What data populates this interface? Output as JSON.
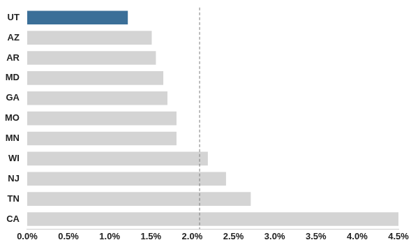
{
  "chart_data": {
    "type": "bar",
    "orientation": "horizontal",
    "categories": [
      "UT",
      "AZ",
      "AR",
      "MD",
      "GA",
      "MO",
      "MN",
      "WI",
      "NJ",
      "TN",
      "CA"
    ],
    "values": [
      1.22,
      1.51,
      1.56,
      1.65,
      1.7,
      1.81,
      1.81,
      2.19,
      2.41,
      2.71,
      4.5
    ],
    "colors": [
      "#3b6f98",
      "#d4d4d4",
      "#d4d4d4",
      "#d4d4d4",
      "#d4d4d4",
      "#d4d4d4",
      "#d4d4d4",
      "#d4d4d4",
      "#d4d4d4",
      "#d4d4d4",
      "#d4d4d4"
    ],
    "xlim": [
      0,
      4.5
    ],
    "xticks": [
      {
        "value": 0,
        "label": "0.0%"
      },
      {
        "value": 0.5,
        "label": "0.5%"
      },
      {
        "value": 1,
        "label": "1.0%"
      },
      {
        "value": 1.5,
        "label": "1.5%"
      },
      {
        "value": 2,
        "label": "2.0%"
      },
      {
        "value": 2.5,
        "label": "2.5%"
      },
      {
        "value": 3,
        "label": "3.0%"
      },
      {
        "value": 3.5,
        "label": "3.5%"
      },
      {
        "value": 4,
        "label": "4.0%"
      },
      {
        "value": 4.5,
        "label": "4.5%"
      }
    ],
    "reference_value": 2.09,
    "grid": false
  }
}
